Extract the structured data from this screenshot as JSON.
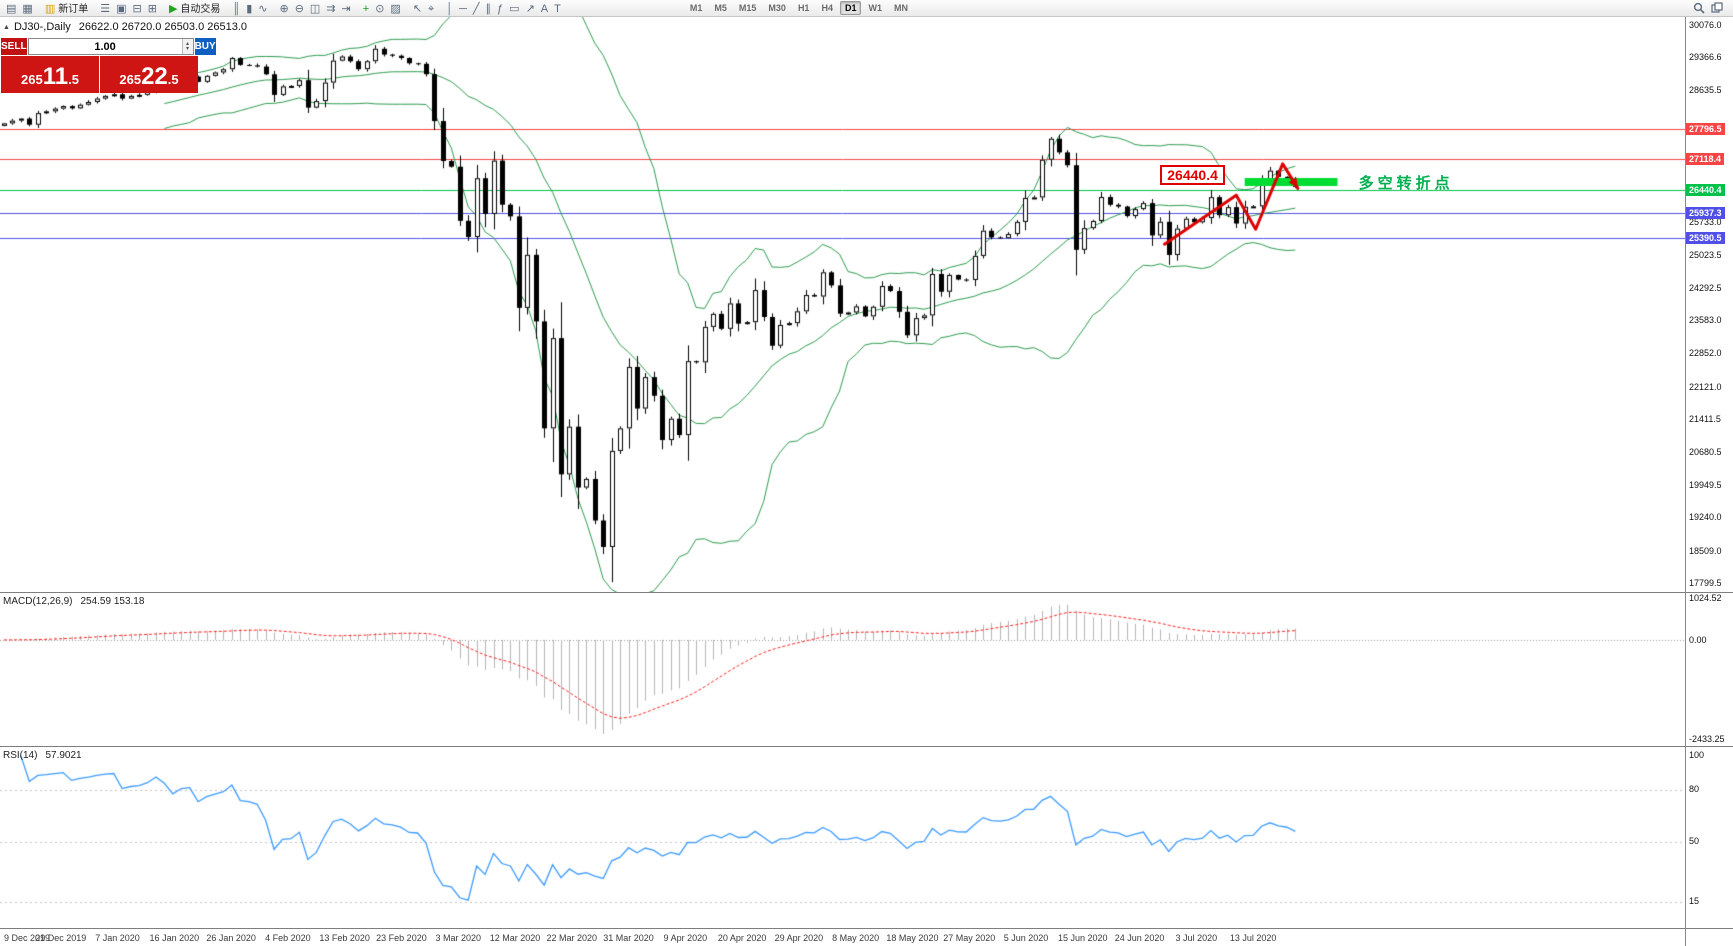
{
  "window": {
    "collapse_arrow": "▲",
    "symbol_title": "DJ30-,Daily",
    "ohlc_text": "26622.0 26720.0 26503.0 26513.0"
  },
  "toolbar": {
    "items": [
      {
        "name": "new-chart",
        "glyph": "▤"
      },
      {
        "name": "profiles",
        "glyph": "▦"
      },
      {
        "name": "sep",
        "glyph": ""
      },
      {
        "name": "new-order",
        "glyph": "▥",
        "label": "新订单",
        "accent": "#d9a400"
      },
      {
        "name": "sep",
        "glyph": ""
      },
      {
        "name": "market-watch",
        "glyph": "☰"
      },
      {
        "name": "data-window",
        "glyph": "▣"
      },
      {
        "name": "navigator",
        "glyph": "⊟"
      },
      {
        "name": "terminal",
        "glyph": "⊞"
      },
      {
        "name": "sep",
        "glyph": ""
      },
      {
        "name": "autotrading",
        "glyph": "▶",
        "label": "自动交易",
        "accent": "#23a223"
      },
      {
        "name": "sep",
        "glyph": ""
      },
      {
        "name": "bar-chart",
        "glyph": "║"
      },
      {
        "name": "candlesticks",
        "glyph": "▮"
      },
      {
        "name": "line-chart",
        "glyph": "∿"
      },
      {
        "name": "sep",
        "glyph": ""
      },
      {
        "name": "zoom-in",
        "glyph": "⊕"
      },
      {
        "name": "zoom-out",
        "glyph": "⊖"
      },
      {
        "name": "tile-windows",
        "glyph": "◫"
      },
      {
        "name": "auto-scroll",
        "glyph": "⇉"
      },
      {
        "name": "chart-shift",
        "glyph": "⇥"
      },
      {
        "name": "sep",
        "glyph": ""
      },
      {
        "name": "indicators",
        "glyph": "+",
        "accent": "#15a015"
      },
      {
        "name": "periods-menu",
        "glyph": "⊙"
      },
      {
        "name": "templates",
        "glyph": "▨"
      },
      {
        "name": "sep",
        "glyph": ""
      },
      {
        "name": "cursor",
        "glyph": "↖"
      },
      {
        "name": "crosshair",
        "glyph": "⌖"
      },
      {
        "name": "sep",
        "glyph": ""
      },
      {
        "name": "vertical-line",
        "glyph": "│"
      },
      {
        "name": "horizontal-line",
        "glyph": "─"
      },
      {
        "name": "trendline",
        "glyph": "╱"
      },
      {
        "name": "equidistant-channel",
        "glyph": "∥"
      },
      {
        "name": "fibonacci",
        "glyph": "ƒ"
      },
      {
        "name": "shapes",
        "glyph": "▭"
      },
      {
        "name": "arrows",
        "glyph": "↗"
      },
      {
        "name": "text",
        "glyph": "A"
      },
      {
        "name": "text-label",
        "glyph": "T"
      }
    ],
    "periods": [
      "M1",
      "M5",
      "M15",
      "M30",
      "H1",
      "H4",
      "D1",
      "W1",
      "MN"
    ],
    "active_period": "D1"
  },
  "trade_panel": {
    "sell_label": "SELL",
    "buy_label": "BUY",
    "volume": "1.00",
    "spinner_up": "▴",
    "spinner_down": "▾",
    "sell_price": {
      "prefix": "265",
      "big": "11",
      "suffix": ".5"
    },
    "buy_price": {
      "prefix": "265",
      "big": "22",
      "suffix": ".5"
    }
  },
  "chart_data": {
    "type": "candlestick+indicators",
    "symbol": "DJ30-",
    "timeframe": "Daily",
    "ohlc_current": {
      "open": 26622.0,
      "high": 26720.0,
      "low": 26503.0,
      "close": 26513.0
    },
    "price_range": [
      17600,
      30250
    ],
    "closes": [
      27910,
      27970,
      28015,
      27880,
      28135,
      28175,
      28235,
      28290,
      28240,
      28320,
      28380,
      28455,
      28515,
      28550,
      28455,
      28515,
      28538,
      28634,
      28869,
      28824,
      28745,
      28907,
      28939,
      28823,
      28956,
      29030,
      29101,
      29348,
      29196,
      29186,
      29160,
      28989,
      28536,
      28723,
      28734,
      28860,
      28256,
      28400,
      28808,
      29290,
      29380,
      29276,
      29102,
      29277,
      29551,
      29423,
      29398,
      29348,
      29232,
      29220,
      28992,
      27960,
      27081,
      26957,
      25766,
      25409,
      26703,
      25917,
      27090,
      26121,
      25864,
      23851,
      25018,
      23553,
      21200,
      23185,
      20188,
      21237,
      19898,
      20087,
      19173,
      18591,
      20704,
      21200,
      22552,
      21636,
      22327,
      21917,
      20943,
      21413,
      21052,
      22679,
      22653,
      23433,
      23719,
      23390,
      23949,
      23504,
      23537,
      24242,
      23650,
      23018,
      23475,
      23515,
      23775,
      24133,
      24101,
      24633,
      24345,
      23723,
      23749,
      23883,
      23664,
      23875,
      24331,
      24221,
      23764,
      23247,
      23625,
      23685,
      24597,
      24206,
      24575,
      24474,
      24465,
      24995,
      25548,
      25400,
      25383,
      25475,
      25742,
      26269,
      26281,
      27110,
      27572,
      27272,
      26989,
      25128,
      25605,
      25763,
      26289,
      26119,
      26080,
      25871,
      26024,
      26156,
      25445,
      25745,
      25015,
      25595,
      25812,
      25734,
      25827,
      26287,
      25890,
      26067,
      25706,
      26075,
      26085,
      26642,
      26870,
      26734,
      26680,
      26513
    ],
    "x_labels": [
      "9 Dec 2019",
      "29 Dec 2019",
      "7 Jan 2020",
      "16 Jan 2020",
      "26 Jan 2020",
      "4 Feb 2020",
      "13 Feb 2020",
      "23 Feb 2020",
      "3 Mar 2020",
      "12 Mar 2020",
      "22 Mar 2020",
      "31 Mar 2020",
      "9 Apr 2020",
      "20 Apr 2020",
      "29 Apr 2020",
      "8 May 2020",
      "18 May 2020",
      "27 May 2020",
      "5 Jun 2020",
      "15 Jun 2020",
      "24 Jun 2020",
      "3 Jul 2020",
      "13 Jul 2020"
    ],
    "price_axis_ticks": [
      "30076.0",
      "29366.6",
      "28635.5",
      "25733.0",
      "25023.5",
      "24292.5",
      "23583.0",
      "22852.0",
      "22121.0",
      "21411.5",
      "20680.5",
      "19949.5",
      "19240.0",
      "18509.0",
      "17799.5"
    ],
    "hlines": [
      {
        "price": 27796.5,
        "label": "27796.5",
        "color": "#f84444"
      },
      {
        "price": 27118.4,
        "label": "27118.4",
        "color": "#f84444"
      },
      {
        "price": 26440.4,
        "label": "26440.4",
        "color": "#00c24a"
      },
      {
        "price": 25937.3,
        "label": "25937.3",
        "color": "#5050e8"
      },
      {
        "price": 25390.5,
        "label": "25390.5",
        "color": "#5050e8"
      }
    ],
    "bollinger": {
      "period": 20,
      "deviation": 2
    },
    "macd": {
      "name": "MACD(12,26,9)",
      "values": "254.59 153.18",
      "fast": 12,
      "slow": 26,
      "signal": 9,
      "axis_ticks": [
        "1024.52",
        "0.00",
        "-2433.25"
      ],
      "range": [
        -2600,
        1150
      ]
    },
    "rsi": {
      "name": "RSI(14)",
      "value": "57.9021",
      "period": 14,
      "axis_ticks": [
        "100",
        "80",
        "50",
        "15"
      ],
      "levels": [
        80,
        50,
        15
      ],
      "range": [
        0,
        105
      ]
    },
    "annotations": {
      "price_label": {
        "text": "26440.4",
        "anchor_index": 137,
        "price": 26440.4
      },
      "zone_bar": {
        "from_index": 147,
        "to_index": 158,
        "price": 26620
      },
      "zone_text": {
        "text": "多空转折点",
        "anchor_index": 160.5,
        "price": 26620
      },
      "arrow": {
        "points": [
          [
            137.5,
            25250
          ],
          [
            146,
            26330
          ],
          [
            148.3,
            25580
          ],
          [
            151.5,
            27020
          ],
          [
            153.3,
            26480
          ]
        ]
      }
    },
    "colors": {
      "up": "#ffffff",
      "down": "#000000",
      "bollinger": "#2c9a4e",
      "zone": "#00dc32",
      "arrow": "#dd0000",
      "macd_bars": "#b4b4b4",
      "macd_signal": "#ff2020",
      "rsi": "#3d9bff"
    }
  }
}
